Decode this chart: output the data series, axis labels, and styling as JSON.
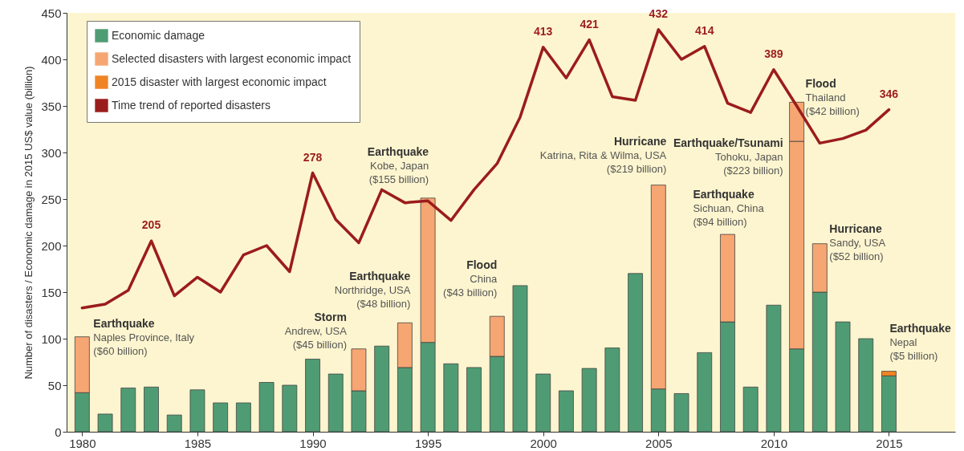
{
  "chart_data": {
    "type": "bar",
    "stacked": true,
    "ylabel": "Number of disasters / Economic damage in 2015 US$ value (billion)",
    "x": [
      1980,
      1981,
      1982,
      1983,
      1984,
      1985,
      1986,
      1987,
      1988,
      1989,
      1990,
      1991,
      1992,
      1993,
      1994,
      1995,
      1996,
      1997,
      1998,
      1999,
      2000,
      2001,
      2002,
      2003,
      2004,
      2005,
      2006,
      2007,
      2008,
      2009,
      2010,
      2011,
      2012,
      2013,
      2014,
      2015
    ],
    "xlim": [
      1979.5,
      2017.7
    ],
    "xticks": [
      1980,
      1985,
      1990,
      1995,
      2000,
      2005,
      2010,
      2015
    ],
    "ylim": [
      0,
      450
    ],
    "yticks": [
      0,
      50,
      100,
      150,
      200,
      250,
      300,
      350,
      400,
      450
    ],
    "grid": false,
    "legend": "top left",
    "series": [
      {
        "name": "Economic damage",
        "color": "#4f9c74",
        "values": [
          42,
          19,
          47,
          48,
          18,
          45,
          31,
          31,
          53,
          50,
          78,
          62,
          44,
          92,
          69,
          96,
          73,
          69,
          81,
          157,
          62,
          44,
          68,
          90,
          170,
          46,
          41,
          85,
          118,
          48,
          136,
          89,
          150,
          118,
          100,
          60
        ]
      },
      {
        "name": "Selected disasters with largest economic impact",
        "color": "#f6a672",
        "values": [
          60,
          null,
          null,
          null,
          null,
          null,
          null,
          null,
          null,
          null,
          null,
          null,
          45,
          null,
          48,
          155,
          null,
          null,
          43,
          null,
          null,
          null,
          null,
          null,
          null,
          219,
          null,
          null,
          94,
          null,
          null,
          223,
          52,
          null,
          null,
          null
        ]
      },
      {
        "color": "#f6a672",
        "values": [
          null,
          null,
          null,
          null,
          null,
          null,
          null,
          null,
          null,
          null,
          null,
          null,
          null,
          null,
          null,
          null,
          null,
          null,
          null,
          null,
          null,
          null,
          null,
          null,
          null,
          null,
          null,
          null,
          null,
          null,
          null,
          42,
          null,
          null,
          null,
          null
        ]
      },
      {
        "name": "2015 disaster with largest economic impact",
        "color": "#f08424",
        "values": [
          null,
          null,
          null,
          null,
          null,
          null,
          null,
          null,
          null,
          null,
          null,
          null,
          null,
          null,
          null,
          null,
          null,
          null,
          null,
          null,
          null,
          null,
          null,
          null,
          null,
          null,
          null,
          null,
          null,
          null,
          null,
          null,
          null,
          null,
          null,
          5
        ]
      },
      {
        "name": "Time trend of reported disasters",
        "type": "line",
        "color": "#9b1c1c",
        "marker": "none",
        "line_style": "solid",
        "values": [
          133,
          137,
          152,
          205,
          146,
          166,
          150,
          190,
          200,
          172,
          278,
          228,
          203,
          260,
          246,
          248,
          227,
          260,
          288,
          338,
          413,
          380,
          421,
          360,
          356,
          432,
          400,
          414,
          353,
          343,
          389,
          350,
          310,
          315,
          324,
          346
        ],
        "value_labels": [
          null,
          null,
          null,
          "205",
          null,
          null,
          null,
          null,
          null,
          null,
          "278",
          null,
          null,
          null,
          null,
          null,
          null,
          null,
          null,
          null,
          "413",
          null,
          "421",
          null,
          null,
          "432",
          null,
          "414",
          null,
          null,
          "389",
          null,
          null,
          null,
          null,
          "346"
        ]
      }
    ],
    "annotations": [
      {
        "text": "Earthquake\nNaples Province, Italy\n($60 billion)",
        "x": 1980,
        "y": 102
      },
      {
        "text": "Storm\nAndrew, USA\n($45 billion)",
        "x": 1992,
        "y": 89
      },
      {
        "text": "Earthquake\nNorthridge, USA\n($48 billion)",
        "x": 1994,
        "y": 117
      },
      {
        "text": "Earthquake\nKobe, Japan\n($155 billion)",
        "x": 1995,
        "y": 251
      },
      {
        "text": "Flood\nChina\n($43 billion)",
        "x": 1998,
        "y": 124
      },
      {
        "text": "Hurricane\nKatrina, Rita & Wilma, USA\n($219 billion)",
        "x": 2005,
        "y": 265
      },
      {
        "text": "Earthquake\nSichuan, China\n($94 billion)",
        "x": 2008,
        "y": 212
      },
      {
        "text": "Earthquake/Tsunami\nTohoku, Japan\n($223 billion)",
        "x": 2011,
        "y": 312
      },
      {
        "text": "Flood\nThailand\n($42 billion)",
        "x": 2011,
        "y": 354
      },
      {
        "text": "Hurricane\nSandy, USA\n($52 billion)",
        "x": 2012,
        "y": 202
      },
      {
        "text": "Earthquake\nNepal\n($5 billion)",
        "x": 2015,
        "y": 65
      }
    ]
  }
}
